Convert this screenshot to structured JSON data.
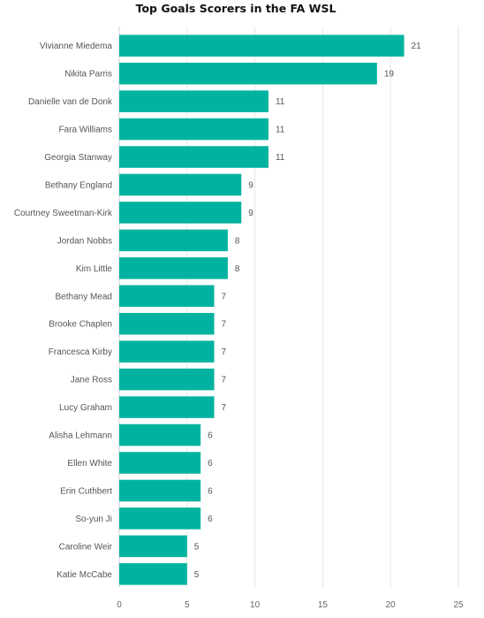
{
  "chart_data": {
    "type": "bar",
    "orientation": "horizontal",
    "title": "Top Goals Scorers in the FA WSL",
    "xlabel": "",
    "ylabel": "",
    "categories": [
      "Vivianne Miedema",
      "Nikita Parris",
      "Danielle van de Donk",
      "Fara Williams",
      "Georgia Stanway",
      "Bethany England",
      "Courtney Sweetman-Kirk",
      "Jordan Nobbs",
      "Kim Little",
      "Bethany Mead",
      "Brooke Chaplen",
      "Francesca Kirby",
      "Jane Ross",
      "Lucy Graham",
      "Alisha Lehmann",
      "Ellen White",
      "Erin Cuthbert",
      "So-yun Ji",
      "Caroline Weir",
      "Katie McCabe"
    ],
    "values": [
      21,
      19,
      11,
      11,
      11,
      9,
      9,
      8,
      8,
      7,
      7,
      7,
      7,
      7,
      6,
      6,
      6,
      6,
      5,
      5
    ],
    "xlim": [
      0,
      25
    ],
    "xticks": [
      "0",
      "5",
      "10",
      "15",
      "20",
      "25"
    ],
    "grid": true,
    "data_labels": true,
    "bar_color": "#00b3a0"
  }
}
